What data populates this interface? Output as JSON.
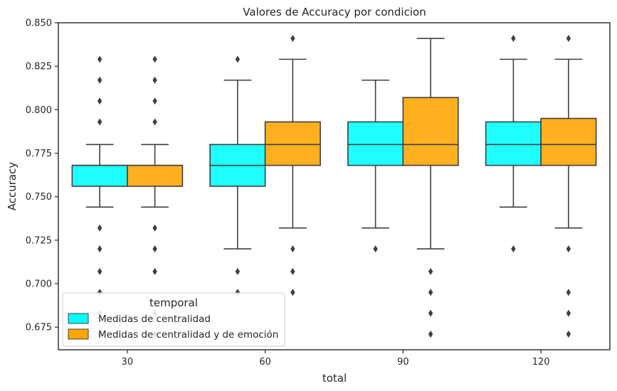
{
  "chart_data": {
    "type": "box",
    "title": "Valores de Accuracy por condicion",
    "xlabel": "total",
    "ylabel": "Accuracy",
    "categories": [
      "30",
      "60",
      "90",
      "120"
    ],
    "ylim": [
      0.662,
      0.85
    ],
    "yticks": [
      "0.675",
      "0.700",
      "0.725",
      "0.750",
      "0.775",
      "0.800",
      "0.825",
      "0.850"
    ],
    "yticks_values": [
      0.675,
      0.7,
      0.725,
      0.75,
      0.775,
      0.8,
      0.825,
      0.85
    ],
    "grid": false,
    "legend": {
      "title": "temporal",
      "placement": "lower-left"
    },
    "series": [
      {
        "name": "Medidas de centralidad",
        "color": "#00FFFF",
        "boxes": [
          {
            "whislo": 0.744,
            "q1": 0.756,
            "med": 0.768,
            "q3": 0.768,
            "whishi": 0.78,
            "fliers": [
              0.829,
              0.817,
              0.805,
              0.793,
              0.732,
              0.72,
              0.707,
              0.695,
              0.683,
              0.671
            ]
          },
          {
            "whislo": 0.72,
            "q1": 0.756,
            "med": 0.768,
            "q3": 0.78,
            "whishi": 0.817,
            "fliers": [
              0.829,
              0.707,
              0.695
            ]
          },
          {
            "whislo": 0.732,
            "q1": 0.768,
            "med": 0.78,
            "q3": 0.793,
            "whishi": 0.817,
            "fliers": [
              0.72
            ]
          },
          {
            "whislo": 0.744,
            "q1": 0.768,
            "med": 0.78,
            "q3": 0.793,
            "whishi": 0.829,
            "fliers": [
              0.841,
              0.72
            ]
          }
        ]
      },
      {
        "name": "Medidas de centralidad y de emoción",
        "color": "#FFA500",
        "boxes": [
          {
            "whislo": 0.744,
            "q1": 0.756,
            "med": 0.768,
            "q3": 0.768,
            "whishi": 0.78,
            "fliers": [
              0.829,
              0.817,
              0.805,
              0.793,
              0.732,
              0.72,
              0.707,
              0.683,
              0.671
            ]
          },
          {
            "whislo": 0.732,
            "q1": 0.768,
            "med": 0.78,
            "q3": 0.793,
            "whishi": 0.829,
            "fliers": [
              0.841,
              0.72,
              0.707,
              0.695
            ]
          },
          {
            "whislo": 0.72,
            "q1": 0.768,
            "med": 0.78,
            "q3": 0.807,
            "whishi": 0.841,
            "fliers": [
              0.707,
              0.695,
              0.683,
              0.671
            ]
          },
          {
            "whislo": 0.732,
            "q1": 0.768,
            "med": 0.78,
            "q3": 0.795,
            "whishi": 0.829,
            "fliers": [
              0.841,
              0.72,
              0.695,
              0.683,
              0.671
            ]
          }
        ]
      }
    ]
  }
}
